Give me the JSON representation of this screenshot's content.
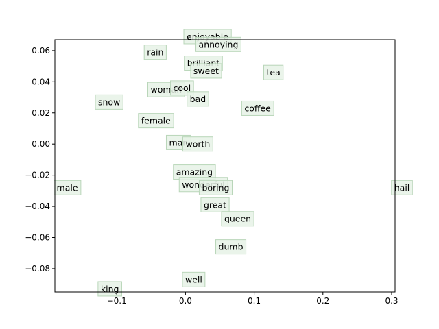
{
  "chart_data": {
    "type": "scatter",
    "title": "",
    "xlabel": "",
    "ylabel": "",
    "xlim": [
      -0.19,
      0.305
    ],
    "ylim": [
      -0.095,
      0.067
    ],
    "xticks": [
      -0.1,
      0.0,
      0.1,
      0.2,
      0.3
    ],
    "xtick_labels": [
      "−0.1",
      "0.0",
      "0.1",
      "0.2",
      "0.3"
    ],
    "yticks": [
      0.06,
      0.04,
      0.02,
      0.0,
      -0.02,
      -0.04,
      -0.06,
      -0.08
    ],
    "ytick_labels": [
      "0.06",
      "0.04",
      "0.02",
      "0.00",
      "−0.02",
      "−0.04",
      "−0.06",
      "−0.08"
    ],
    "grid": false,
    "label_box_color": "#e6f2e6",
    "points": [
      {
        "word": "enjoyable",
        "x": 0.032,
        "y": 0.069
      },
      {
        "word": "annoying",
        "x": 0.048,
        "y": 0.064
      },
      {
        "word": "rain",
        "x": -0.044,
        "y": 0.059
      },
      {
        "word": "brilliant",
        "x": 0.026,
        "y": 0.052
      },
      {
        "word": "sweet",
        "x": 0.03,
        "y": 0.047
      },
      {
        "word": "tea",
        "x": 0.128,
        "y": 0.046
      },
      {
        "word": "woman",
        "x": -0.028,
        "y": 0.035
      },
      {
        "word": "cool",
        "x": -0.005,
        "y": 0.036
      },
      {
        "word": "bad",
        "x": 0.018,
        "y": 0.029
      },
      {
        "word": "snow",
        "x": -0.111,
        "y": 0.027
      },
      {
        "word": "coffee",
        "x": 0.105,
        "y": 0.023
      },
      {
        "word": "female",
        "x": -0.043,
        "y": 0.015
      },
      {
        "word": "man",
        "x": -0.01,
        "y": 0.001
      },
      {
        "word": "worth",
        "x": 0.018,
        "y": 0.0
      },
      {
        "word": "amazing",
        "x": 0.013,
        "y": -0.018
      },
      {
        "word": "wonderful",
        "x": 0.026,
        "y": -0.026
      },
      {
        "word": "boring",
        "x": 0.044,
        "y": -0.028
      },
      {
        "word": "male",
        "x": -0.172,
        "y": -0.028
      },
      {
        "word": "hail",
        "x": 0.315,
        "y": -0.028
      },
      {
        "word": "great",
        "x": 0.043,
        "y": -0.039
      },
      {
        "word": "queen",
        "x": 0.076,
        "y": -0.048
      },
      {
        "word": "dumb",
        "x": 0.066,
        "y": -0.066
      },
      {
        "word": "well",
        "x": 0.012,
        "y": -0.087
      },
      {
        "word": "king",
        "x": -0.11,
        "y": -0.093
      }
    ]
  }
}
